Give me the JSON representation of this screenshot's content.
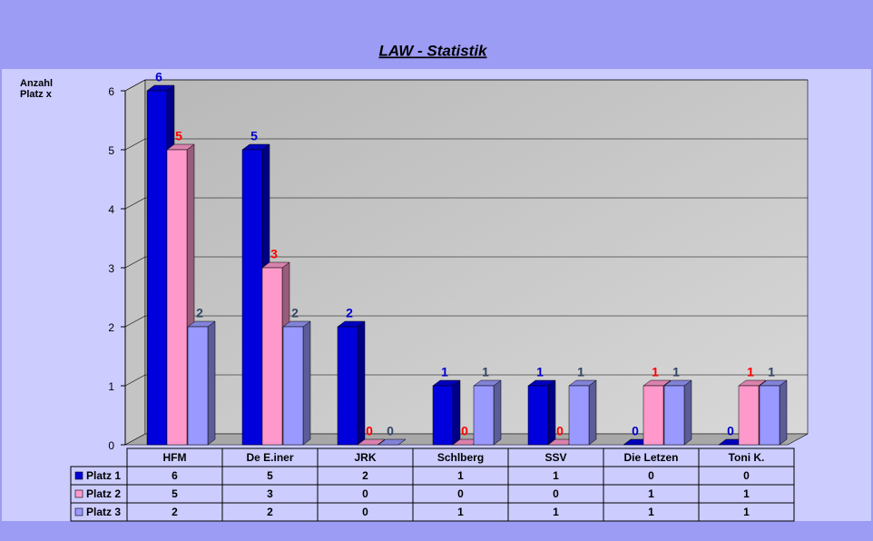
{
  "chart_data": {
    "type": "bar3d",
    "title": "LAW - Statistik",
    "y_label": "Anzahl Platz x",
    "categories": [
      "HFM",
      "De E.iner",
      "JRK",
      "Schlberg",
      "SSV",
      "Die Letzen",
      "Toni K."
    ],
    "series": [
      {
        "name": "Platz 1",
        "color": "#0000dd",
        "label_color": "#0000cc",
        "values": [
          6,
          5,
          2,
          1,
          1,
          0,
          0
        ]
      },
      {
        "name": "Platz 2",
        "color": "#ff99cc",
        "label_color": "#ff0000",
        "values": [
          5,
          3,
          0,
          0,
          0,
          1,
          1
        ]
      },
      {
        "name": "Platz 3",
        "color": "#9999ff",
        "label_color": "#334466",
        "values": [
          2,
          2,
          0,
          1,
          1,
          1,
          1
        ]
      }
    ],
    "ylim": [
      0,
      6
    ],
    "yticks": [
      0,
      1,
      2,
      3,
      4,
      5,
      6
    ],
    "grid": true
  }
}
